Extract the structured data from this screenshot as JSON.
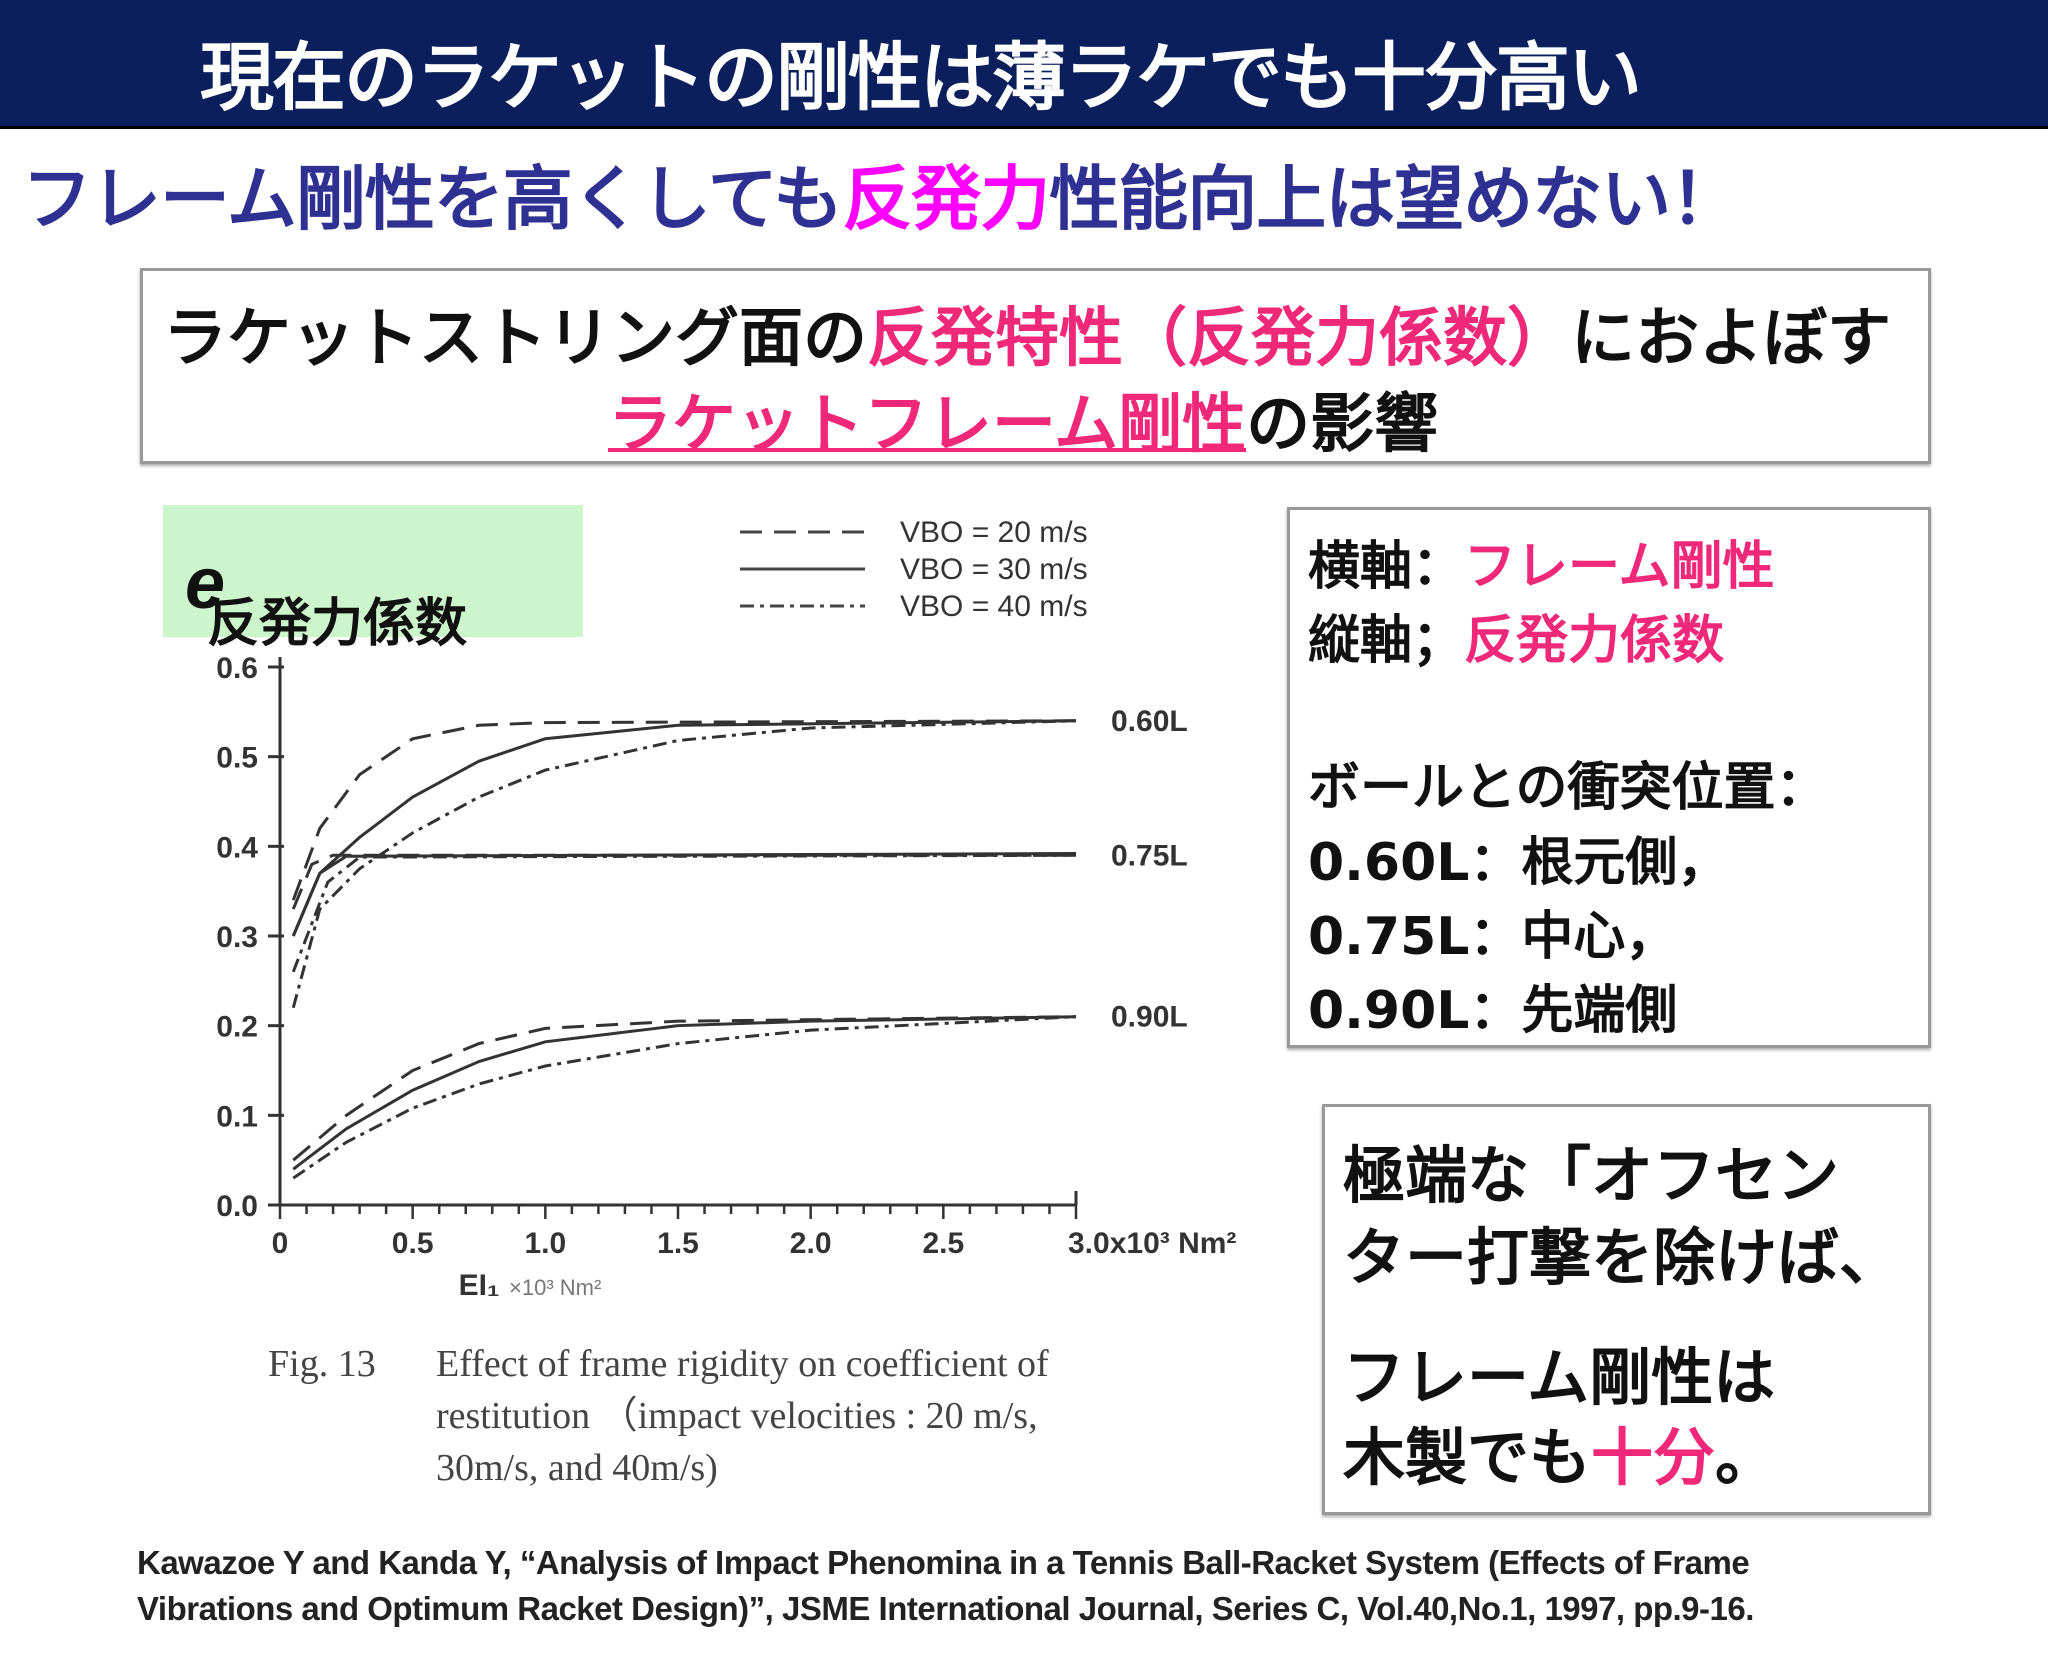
{
  "header": {
    "title": "現在のラケットの剛性は薄ラケでも十分高い"
  },
  "subtitle": {
    "part1": "フレーム剛性を高くしても",
    "highlight": "反発力",
    "part2": "性能向上は望めない！"
  },
  "topbox": {
    "l1_a": "ラケットストリング面の",
    "l1_b": "反発特性（反発力係数）",
    "l1_c": "におよぼす",
    "l2_a": "ラケットフレーム剛性",
    "l2_b": "の影響"
  },
  "y_label": {
    "text": "反発力係数 ",
    "symbol": "e"
  },
  "chart_data": {
    "type": "line",
    "xlabel": "EI₁",
    "x_unit": "×10³ Nm²",
    "xlim": [
      0,
      3.0
    ],
    "ylim": [
      0,
      0.6
    ],
    "xticks": [
      "0",
      "0.5",
      "1.0",
      "1.5",
      "2.0",
      "2.5",
      "3.0x10³ Nm²"
    ],
    "yticks": [
      "0.0",
      "0.1",
      "0.2",
      "0.3",
      "0.4",
      "0.5",
      "0.6"
    ],
    "legend": [
      "VBO = 20 m/s",
      "VBO = 30 m/s",
      "VBO = 40 m/s"
    ],
    "legend_position": "top-right",
    "groups": [
      {
        "label": "0.60L",
        "series": [
          {
            "name": "20 m/s",
            "style": "dashed",
            "points": [
              [
                0.05,
                0.34
              ],
              [
                0.15,
                0.42
              ],
              [
                0.3,
                0.48
              ],
              [
                0.5,
                0.52
              ],
              [
                0.75,
                0.535
              ],
              [
                1.0,
                0.538
              ],
              [
                3.0,
                0.54
              ]
            ]
          },
          {
            "name": "30 m/s",
            "style": "solid",
            "points": [
              [
                0.05,
                0.3
              ],
              [
                0.15,
                0.37
              ],
              [
                0.3,
                0.41
              ],
              [
                0.5,
                0.455
              ],
              [
                0.75,
                0.495
              ],
              [
                1.0,
                0.52
              ],
              [
                1.5,
                0.535
              ],
              [
                3.0,
                0.54
              ]
            ]
          },
          {
            "name": "40 m/s",
            "style": "dashdot",
            "points": [
              [
                0.05,
                0.22
              ],
              [
                0.15,
                0.33
              ],
              [
                0.3,
                0.375
              ],
              [
                0.5,
                0.415
              ],
              [
                0.75,
                0.455
              ],
              [
                1.0,
                0.485
              ],
              [
                1.5,
                0.518
              ],
              [
                2.0,
                0.532
              ],
              [
                3.0,
                0.54
              ]
            ]
          }
        ]
      },
      {
        "label": "0.75L",
        "series": [
          {
            "name": "20 m/s",
            "style": "dashed",
            "points": [
              [
                0.05,
                0.33
              ],
              [
                0.12,
                0.38
              ],
              [
                0.2,
                0.39
              ],
              [
                3.0,
                0.39
              ]
            ]
          },
          {
            "name": "30 m/s",
            "style": "solid",
            "points": [
              [
                0.05,
                0.3
              ],
              [
                0.15,
                0.37
              ],
              [
                0.25,
                0.389
              ],
              [
                3.0,
                0.392
              ]
            ]
          },
          {
            "name": "40 m/s",
            "style": "dashdot",
            "points": [
              [
                0.05,
                0.26
              ],
              [
                0.18,
                0.36
              ],
              [
                0.3,
                0.388
              ],
              [
                3.0,
                0.39
              ]
            ]
          }
        ]
      },
      {
        "label": "0.90L",
        "series": [
          {
            "name": "20 m/s",
            "style": "dashed",
            "points": [
              [
                0.05,
                0.05
              ],
              [
                0.25,
                0.1
              ],
              [
                0.5,
                0.15
              ],
              [
                0.75,
                0.18
              ],
              [
                1.0,
                0.197
              ],
              [
                1.5,
                0.205
              ],
              [
                3.0,
                0.21
              ]
            ]
          },
          {
            "name": "30 m/s",
            "style": "solid",
            "points": [
              [
                0.05,
                0.04
              ],
              [
                0.25,
                0.085
              ],
              [
                0.5,
                0.128
              ],
              [
                0.75,
                0.16
              ],
              [
                1.0,
                0.182
              ],
              [
                1.5,
                0.2
              ],
              [
                2.0,
                0.205
              ],
              [
                3.0,
                0.21
              ]
            ]
          },
          {
            "name": "40 m/s",
            "style": "dashdot",
            "points": [
              [
                0.05,
                0.03
              ],
              [
                0.25,
                0.07
              ],
              [
                0.5,
                0.108
              ],
              [
                0.75,
                0.135
              ],
              [
                1.0,
                0.155
              ],
              [
                1.5,
                0.18
              ],
              [
                2.0,
                0.195
              ],
              [
                3.0,
                0.21
              ]
            ]
          }
        ]
      }
    ]
  },
  "caption": {
    "fig": "Fig. 13",
    "line1": "Effect of frame rigidity on coefficient of",
    "line2": "restitution （impact  velocities : 20 m/s,",
    "line3": "30m/s, and 40m/s)"
  },
  "info": {
    "x_key": "横軸：",
    "x_val": "フレーム剛性",
    "y_key": "縦軸；",
    "y_val": "反発力係数",
    "pos_title": "ボールとの衝突位置：",
    "pos1": "0.60L：根元側，",
    "pos2": "0.75L：中心，",
    "pos3": "0.90L：先端側"
  },
  "note": {
    "l1": "極端な「オフセン",
    "l2": "ター打撃を除けば、",
    "l3": "フレーム剛性は",
    "l4_a": "木製でも",
    "l4_b": "十分",
    "l4_c": "。"
  },
  "citation": {
    "line1": "Kawazoe Y and Kanda Y, “Analysis of Impact Phenomina in a Tennis Ball-Racket System (Effects of Frame",
    "line2": "Vibrations and Optimum Racket Design)”, JSME International Journal, Series C, Vol.40,No.1, 1997, pp.9-16."
  }
}
